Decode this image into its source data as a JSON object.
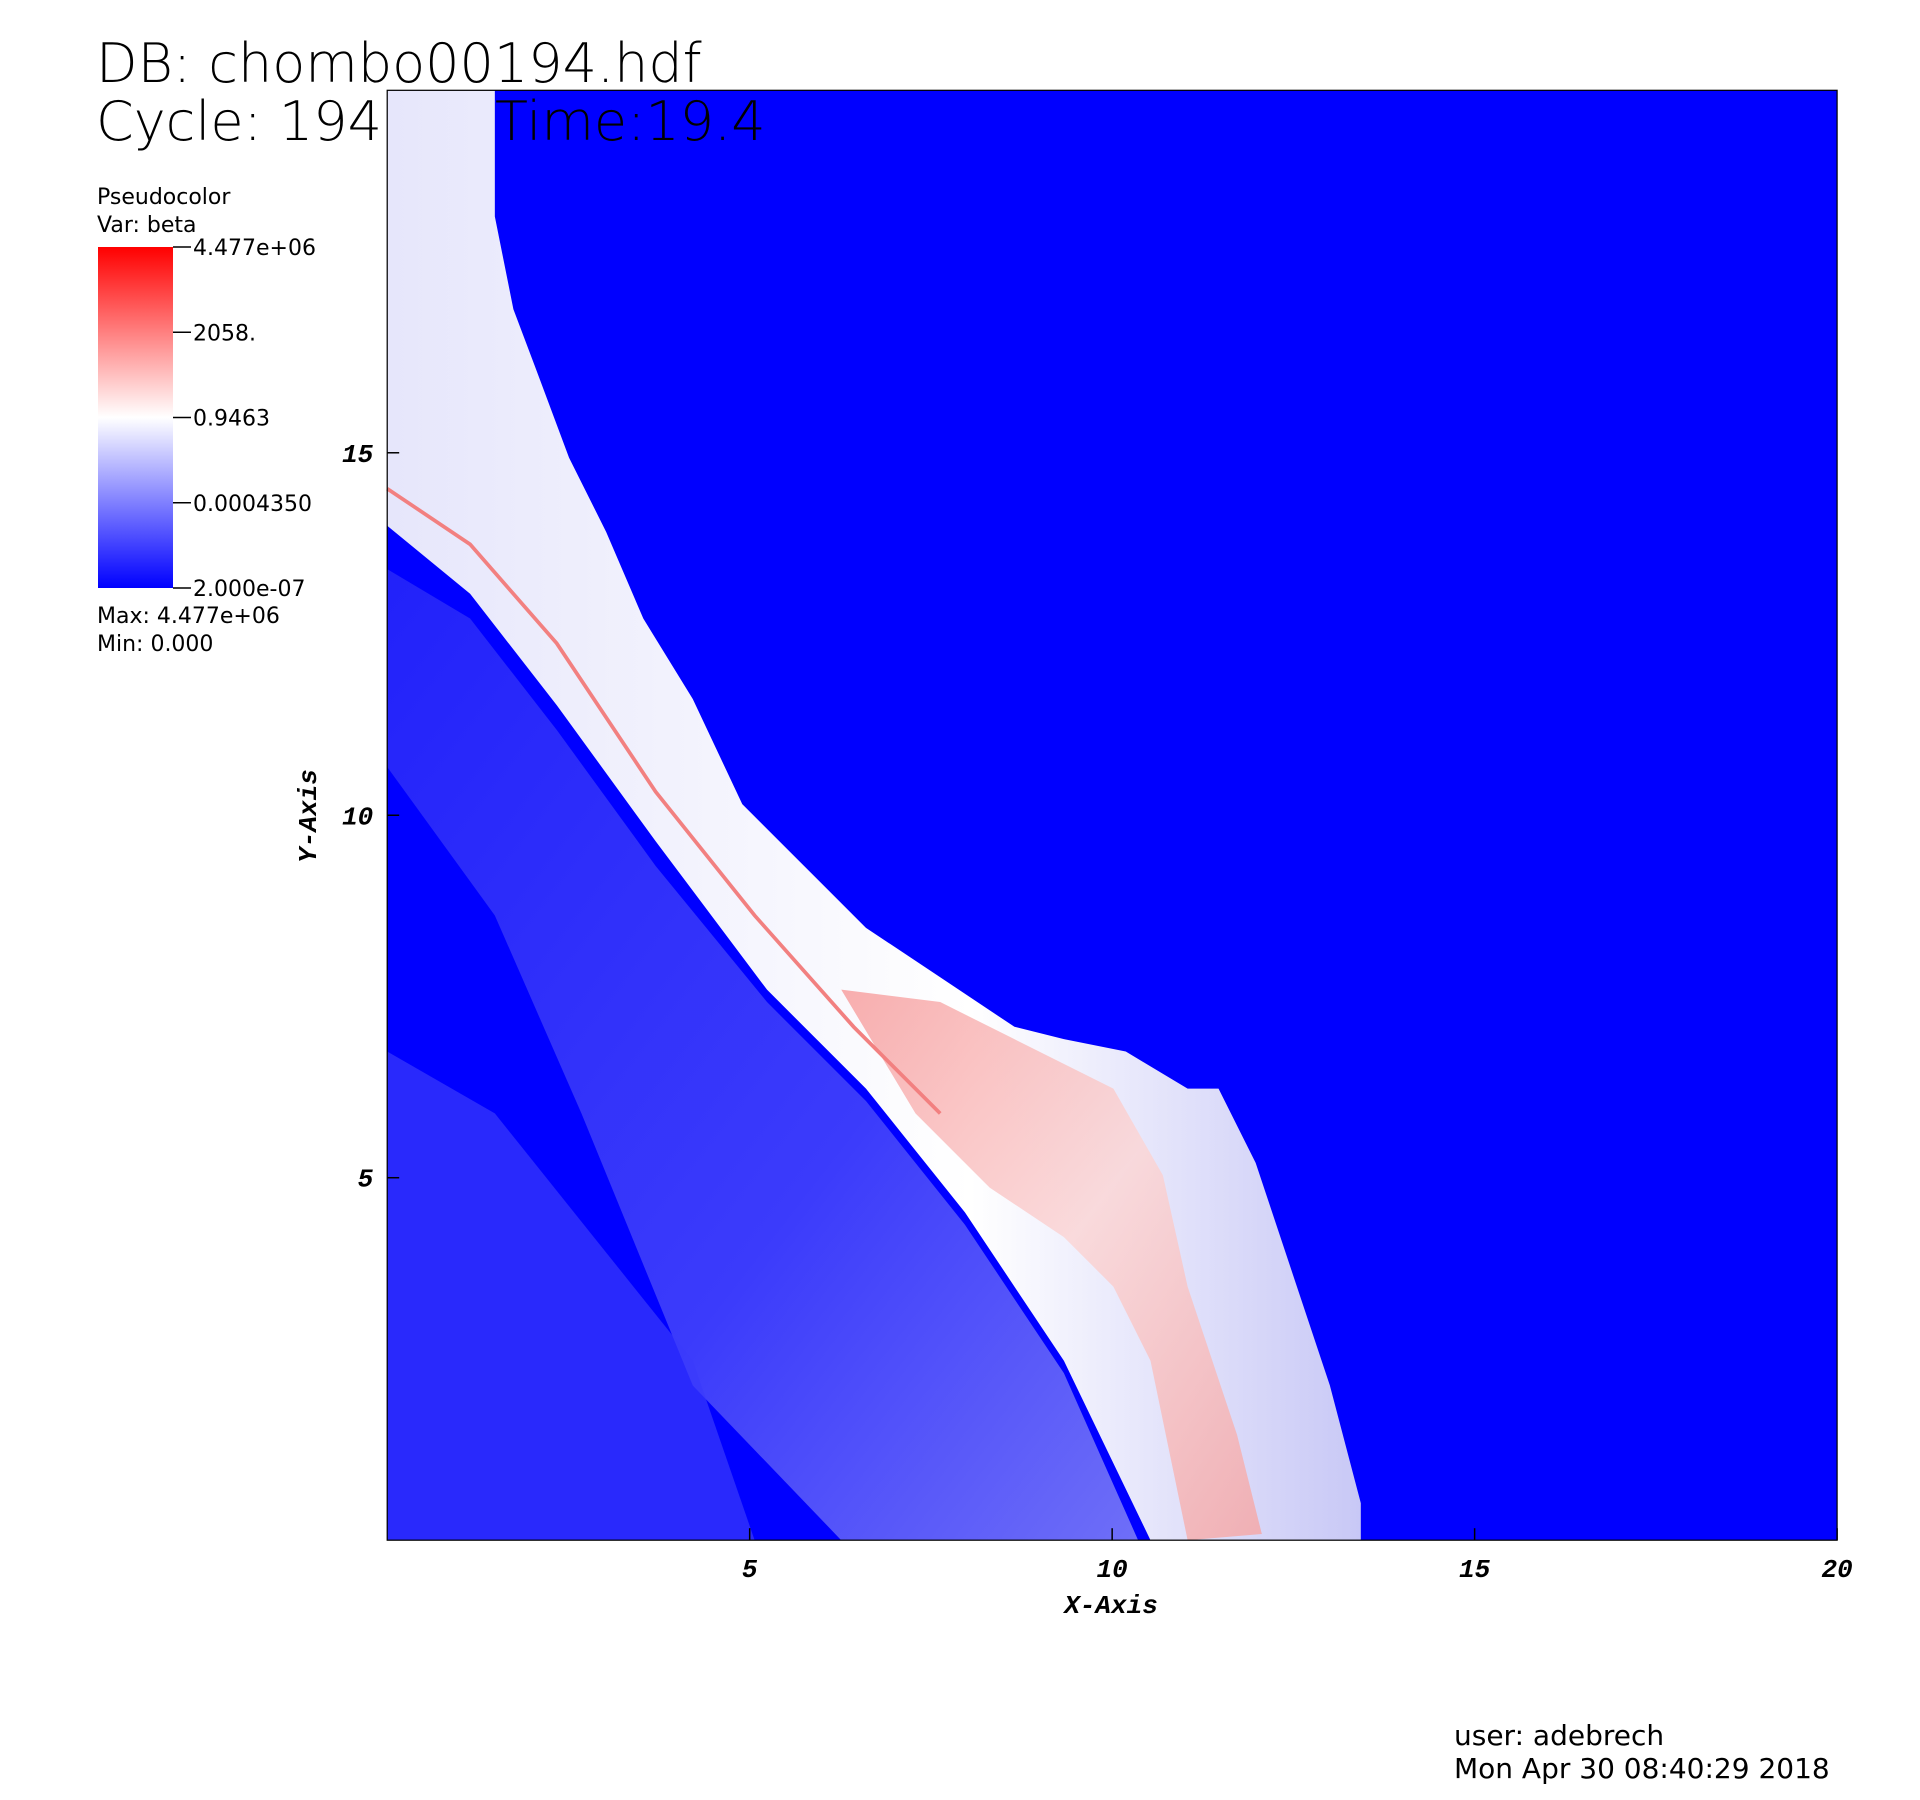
{
  "chart_data": {
    "type": "heatmap",
    "title": "DB: chombo00194.hdf",
    "cycle": "Cycle: 194",
    "time": "Time:19.4",
    "x_label": "X-Axis",
    "y_label": "Y-Axis",
    "xlim": [
      0,
      20
    ],
    "xticks": [
      5,
      10,
      15,
      20
    ],
    "ylim": [
      0,
      20
    ],
    "yticks": [
      5,
      10,
      15
    ],
    "colorbar": {
      "title": "Pseudocolor",
      "variable": "Var: beta",
      "lim": [
        2e-07,
        4477000
      ],
      "log": true,
      "colors": [
        "#0000ff",
        "#ffffff",
        "#ff0000"
      ],
      "ticks": [
        {
          "value": 4477000,
          "label": "4.477e+06"
        },
        {
          "value": 2058,
          "label": "2058."
        },
        0.9463,
        {
          "value": 0.000435,
          "label": "0.0004350"
        },
        {
          "value": 2e-07,
          "label": "2.000e-07"
        }
      ],
      "max_label": "Max:  4.477e+06",
      "min_label": "Min:  0.000"
    },
    "user": "user: adebrech",
    "date": "Mon Apr 30 08:40:29 2018"
  }
}
